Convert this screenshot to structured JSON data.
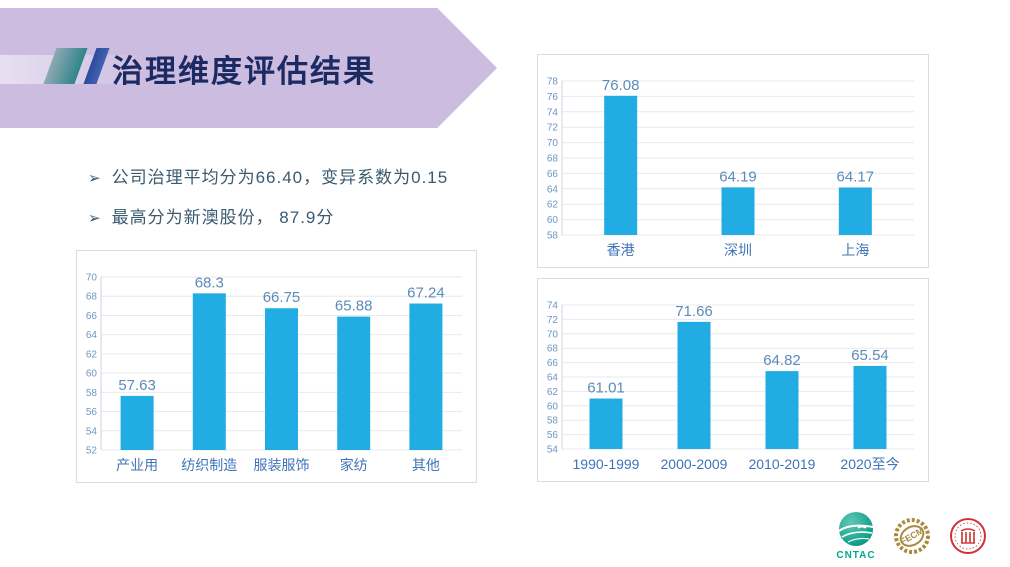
{
  "slide": {
    "title": "治理维度评估结果",
    "bullet_marker": "➢",
    "bullets": [
      "公司治理平均分为66.40，变异系数为0.15",
      "最高分为新澳股份， 87.9分"
    ]
  },
  "colors": {
    "banner": "#CCBCE0",
    "title_text": "#1B2A63",
    "bullet_text": "#3A5A70",
    "slash_teal_from": "#8FA8B5",
    "slash_teal_to": "#2F8588",
    "slash_blue_from": "#2C4A9E",
    "slash_blue_to": "#4163B0",
    "bar": "#21ACE3",
    "gridline": "#E6EAEE",
    "axis_line": "#C9D6E4",
    "tick_label": "#6E96C0",
    "data_label": "#5C8BB8",
    "category_label": "#3F74B8",
    "panel_border": "#D4DEEA",
    "logo_green": "#00A88E",
    "logo_gold": "#A98B3F",
    "logo_red": "#CC3333"
  },
  "chart_data": [
    {
      "type": "bar",
      "categories": [
        "产业用",
        "纺织制造",
        "服装服饰",
        "家纺",
        "其他"
      ],
      "values": [
        57.63,
        68.3,
        66.75,
        65.88,
        67.24
      ],
      "title": "",
      "xlabel": "",
      "ylabel": "",
      "ylim": [
        52,
        70
      ],
      "ytick_step": 2,
      "grid": true,
      "legend": false
    },
    {
      "type": "bar",
      "categories": [
        "香港",
        "深圳",
        "上海"
      ],
      "values": [
        76.08,
        64.19,
        64.17
      ],
      "title": "",
      "xlabel": "",
      "ylabel": "",
      "ylim": [
        58,
        78
      ],
      "ytick_step": 2,
      "grid": true,
      "legend": false
    },
    {
      "type": "bar",
      "categories": [
        "1990-1999",
        "2000-2009",
        "2010-2019",
        "2020至今"
      ],
      "values": [
        61.01,
        71.66,
        64.82,
        65.54
      ],
      "title": "",
      "xlabel": "",
      "ylabel": "",
      "ylim": [
        54,
        74
      ],
      "ytick_step": 2,
      "grid": true,
      "legend": false
    }
  ],
  "logos": [
    {
      "name": "cntac",
      "label": "CNTAC"
    },
    {
      "name": "fecm",
      "label": "FECM"
    },
    {
      "name": "seal",
      "label": ""
    }
  ]
}
